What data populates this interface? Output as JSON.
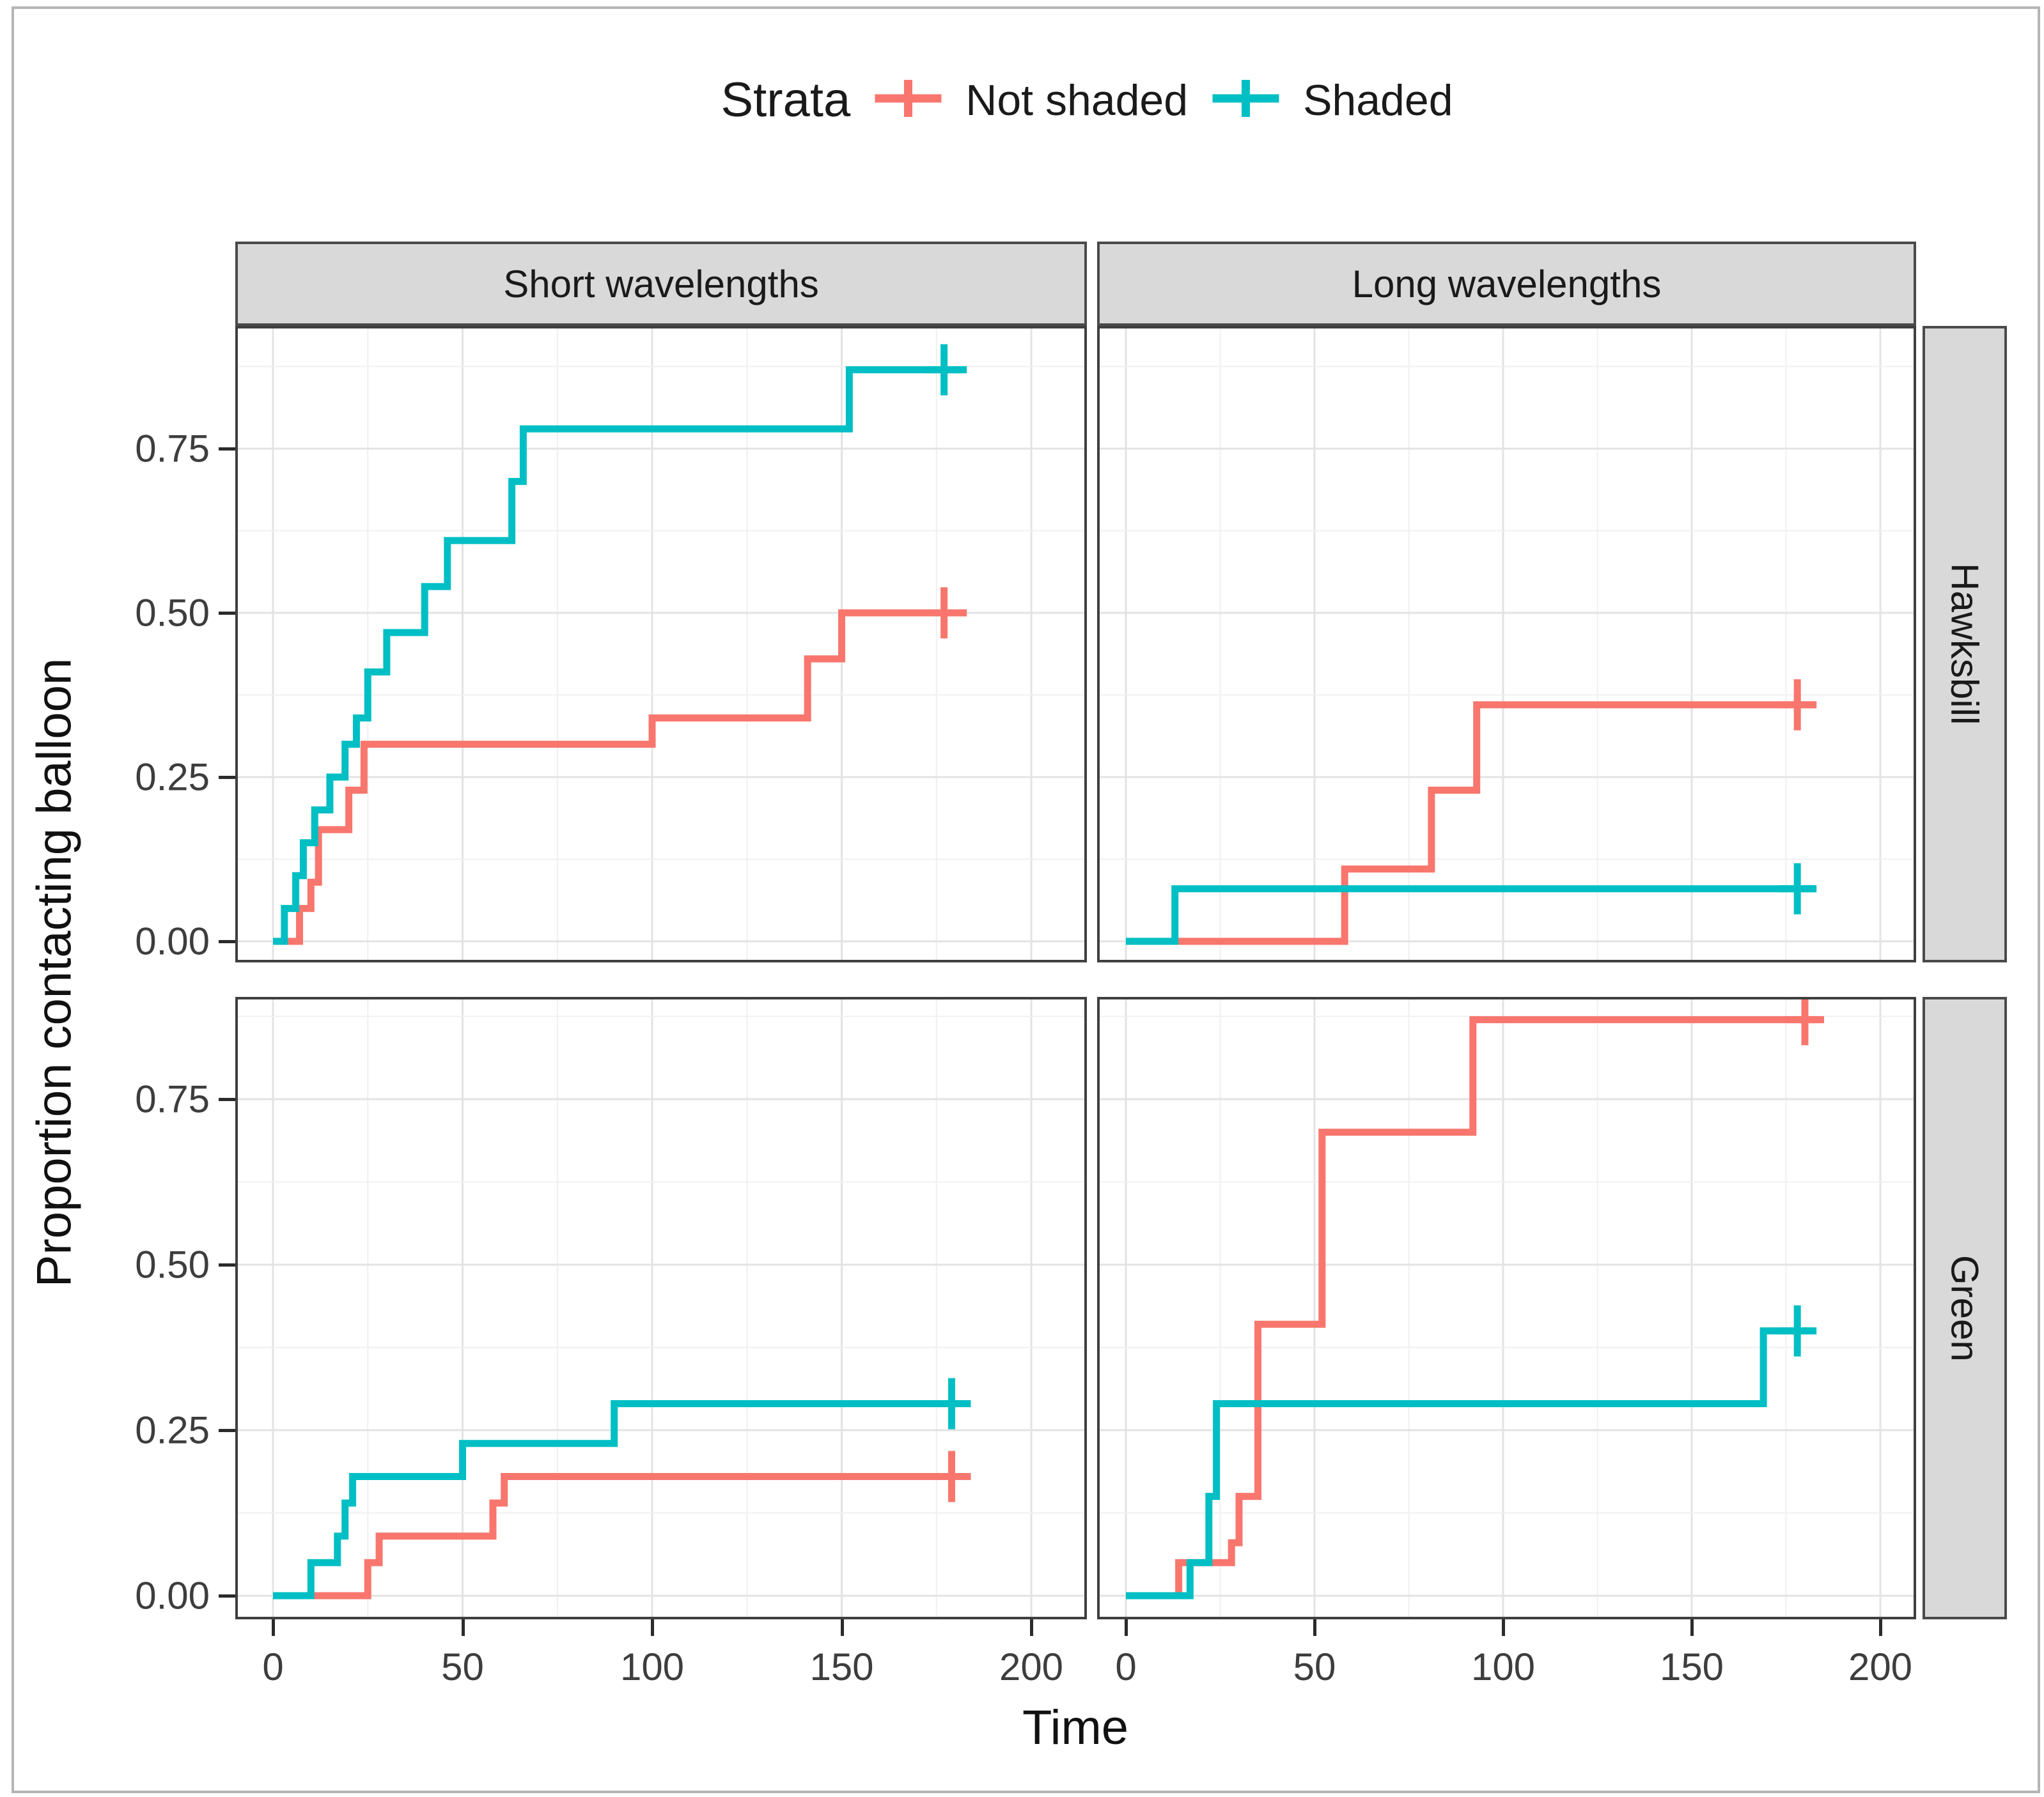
{
  "legend": {
    "title": "Strata",
    "items": [
      {
        "label": "Not shaded",
        "color": "#F8766D"
      },
      {
        "label": "Shaded",
        "color": "#00BFC4"
      }
    ],
    "position": "top"
  },
  "axes": {
    "x_title": "Time",
    "y_title": "Proportion contacting balloon",
    "x_tick_labels": [
      "0",
      "50",
      "100",
      "150",
      "200"
    ],
    "y_tick_labels": [
      "0.00",
      "0.25",
      "0.50",
      "0.75"
    ]
  },
  "facets": {
    "columns": [
      "Short wavelengths",
      "Long wavelengths"
    ],
    "rows": [
      "Hawksbill",
      "Green"
    ]
  },
  "style": {
    "not_shaded_color": "#F8766D",
    "shaded_color": "#00BFC4",
    "strip_fill": "#d9d9d9",
    "grid_major": "#e3e3e3",
    "grid_minor": "#f0f0f0",
    "curve_width": 11
  },
  "chart_data": {
    "type": "line",
    "subtype": "step-survival",
    "title": "",
    "xlabel": "Time",
    "ylabel": "Proportion contacting balloon",
    "x_ticks": [
      0,
      50,
      100,
      150,
      200
    ],
    "y_ticks": [
      0.0,
      0.25,
      0.5,
      0.75
    ],
    "x_minor_step": 25,
    "y_minor_step": 0.125,
    "xlim": [
      0,
      215
    ],
    "ylim": [
      0,
      0.92
    ],
    "legend_position": "top",
    "grid": true,
    "panels": [
      {
        "facet_col": "Short wavelengths",
        "facet_row": "Hawksbill",
        "series": [
          {
            "name": "Not shaded",
            "points": [
              [
                0,
                0
              ],
              [
                7,
                0.05
              ],
              [
                10,
                0.09
              ],
              [
                12,
                0.17
              ],
              [
                20,
                0.23
              ],
              [
                24,
                0.3
              ],
              [
                100,
                0.34
              ],
              [
                141,
                0.43
              ],
              [
                150,
                0.5
              ],
              [
                183,
                0.5
              ]
            ],
            "censor": [
              [
                177,
                0.5
              ]
            ]
          },
          {
            "name": "Shaded",
            "points": [
              [
                0,
                0
              ],
              [
                3,
                0.05
              ],
              [
                6,
                0.1
              ],
              [
                8,
                0.15
              ],
              [
                11,
                0.2
              ],
              [
                15,
                0.25
              ],
              [
                19,
                0.3
              ],
              [
                22,
                0.34
              ],
              [
                25,
                0.41
              ],
              [
                30,
                0.47
              ],
              [
                40,
                0.54
              ],
              [
                46,
                0.61
              ],
              [
                63,
                0.7
              ],
              [
                66,
                0.78
              ],
              [
                152,
                0.87
              ],
              [
                183,
                0.87
              ]
            ],
            "censor": [
              [
                177,
                0.87
              ]
            ]
          }
        ]
      },
      {
        "facet_col": "Long wavelengths",
        "facet_row": "Hawksbill",
        "series": [
          {
            "name": "Not shaded",
            "points": [
              [
                0,
                0
              ],
              [
                58,
                0.11
              ],
              [
                81,
                0.23
              ],
              [
                93,
                0.36
              ],
              [
                183,
                0.36
              ]
            ],
            "censor": [
              [
                178,
                0.36
              ]
            ]
          },
          {
            "name": "Shaded",
            "points": [
              [
                0,
                0
              ],
              [
                13,
                0.08
              ],
              [
                183,
                0.08
              ]
            ],
            "censor": [
              [
                178,
                0.08
              ]
            ]
          }
        ]
      },
      {
        "facet_col": "Short wavelengths",
        "facet_row": "Green",
        "series": [
          {
            "name": "Not shaded",
            "points": [
              [
                0,
                0
              ],
              [
                25,
                0.05
              ],
              [
                28,
                0.09
              ],
              [
                58,
                0.14
              ],
              [
                61,
                0.18
              ],
              [
                183,
                0.18
              ]
            ],
            "censor": [
              [
                179,
                0.18
              ]
            ]
          },
          {
            "name": "Shaded",
            "points": [
              [
                0,
                0
              ],
              [
                10,
                0.05
              ],
              [
                17,
                0.09
              ],
              [
                19,
                0.14
              ],
              [
                21,
                0.18
              ],
              [
                50,
                0.23
              ],
              [
                90,
                0.29
              ],
              [
                183,
                0.29
              ]
            ],
            "censor": [
              [
                179,
                0.29
              ]
            ]
          }
        ]
      },
      {
        "facet_col": "Long wavelengths",
        "facet_row": "Green",
        "series": [
          {
            "name": "Not shaded",
            "points": [
              [
                0,
                0
              ],
              [
                14,
                0.05
              ],
              [
                28,
                0.08
              ],
              [
                30,
                0.15
              ],
              [
                35,
                0.41
              ],
              [
                52,
                0.7
              ],
              [
                92,
                0.87
              ],
              [
                184,
                0.87
              ]
            ],
            "censor": [
              [
                180,
                0.87
              ]
            ]
          },
          {
            "name": "Shaded",
            "points": [
              [
                0,
                0
              ],
              [
                17,
                0.05
              ],
              [
                22,
                0.15
              ],
              [
                24,
                0.29
              ],
              [
                169,
                0.4
              ],
              [
                181,
                0.4
              ]
            ],
            "censor": [
              [
                178,
                0.4
              ]
            ]
          }
        ]
      }
    ]
  }
}
